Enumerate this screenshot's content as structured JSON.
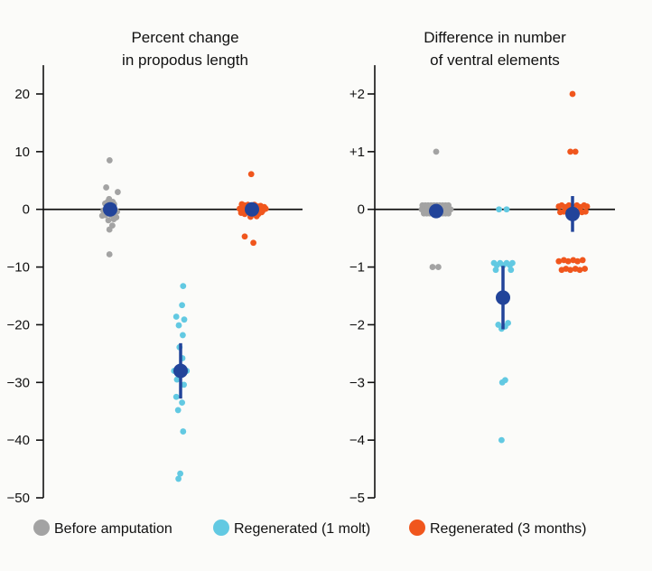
{
  "colors": {
    "before": "#a3a3a3",
    "molt1": "#62c9e2",
    "months3": "#f0561d",
    "mean": "#22449a",
    "axis": "#111111"
  },
  "legend": [
    {
      "label": "Before amputation",
      "color_key": "before"
    },
    {
      "label": "Regenerated (1 molt)",
      "color_key": "molt1"
    },
    {
      "label": "Regenerated (3 months)",
      "color_key": "months3"
    }
  ],
  "chart_data": [
    {
      "type": "scatter",
      "title": [
        "Percent change",
        "in propodus length"
      ],
      "ylim": [
        -50,
        25
      ],
      "yticks": [
        20,
        10,
        0,
        -10,
        -20,
        -30,
        -40,
        -50
      ],
      "ytick_labels": [
        "20",
        "10",
        "0",
        "−10",
        "−20",
        "−30",
        "−40",
        "−50"
      ],
      "groups": [
        {
          "name": "Before amputation",
          "color_key": "before",
          "mean": 0,
          "ci": [
            0,
            0
          ],
          "points": [
            {
              "dx": -0.08,
              "y": 8.5
            },
            {
              "dx": -0.55,
              "y": 3.8
            },
            {
              "dx": 1.05,
              "y": 3.0
            },
            {
              "dx": -0.15,
              "y": 1.8
            },
            {
              "dx": -0.35,
              "y": 1.3
            },
            {
              "dx": 0.35,
              "y": 1.3
            },
            {
              "dx": -0.7,
              "y": 1.0
            },
            {
              "dx": 0.55,
              "y": 0.9
            },
            {
              "dx": 0.3,
              "y": 0.4
            },
            {
              "dx": -0.5,
              "y": 0.3
            },
            {
              "dx": 0.0,
              "y": 0.0
            },
            {
              "dx": -0.95,
              "y": -0.2
            },
            {
              "dx": 0.7,
              "y": -0.2
            },
            {
              "dx": 0.95,
              "y": -0.4
            },
            {
              "dx": -0.35,
              "y": -0.6
            },
            {
              "dx": 0.4,
              "y": -0.9
            },
            {
              "dx": -0.65,
              "y": -1.0
            },
            {
              "dx": 0.15,
              "y": -1.0
            },
            {
              "dx": -1.1,
              "y": -1.1
            },
            {
              "dx": 0.85,
              "y": -1.4
            },
            {
              "dx": 0.5,
              "y": -1.7
            },
            {
              "dx": -0.25,
              "y": -1.9
            },
            {
              "dx": 0.3,
              "y": -2.8
            },
            {
              "dx": -0.1,
              "y": -3.5
            },
            {
              "dx": -0.1,
              "y": -7.8
            }
          ]
        },
        {
          "name": "Regenerated (1 molt)",
          "color_key": "molt1",
          "mean": -28,
          "ci": [
            -32.8,
            -23.2
          ],
          "points": [
            {
              "dx": 0.35,
              "y": -13.3
            },
            {
              "dx": 0.2,
              "y": -16.6
            },
            {
              "dx": -0.6,
              "y": -18.6
            },
            {
              "dx": 0.5,
              "y": -19.1
            },
            {
              "dx": -0.25,
              "y": -20.1
            },
            {
              "dx": 0.3,
              "y": -21.8
            },
            {
              "dx": -0.15,
              "y": -23.9
            },
            {
              "dx": 0.25,
              "y": -25.8
            },
            {
              "dx": -0.9,
              "y": -28.0
            },
            {
              "dx": 0.85,
              "y": -28.0
            },
            {
              "dx": -0.5,
              "y": -29.5
            },
            {
              "dx": 0.45,
              "y": -30.4
            },
            {
              "dx": -0.6,
              "y": -32.5
            },
            {
              "dx": 0.2,
              "y": -33.5
            },
            {
              "dx": -0.35,
              "y": -34.8
            },
            {
              "dx": 0.35,
              "y": -38.5
            },
            {
              "dx": -0.05,
              "y": -45.8
            },
            {
              "dx": -0.3,
              "y": -46.7
            }
          ]
        },
        {
          "name": "Regenerated (3 months)",
          "color_key": "months3",
          "mean": 0,
          "ci": [
            0,
            0
          ],
          "points": [
            {
              "dx": -0.1,
              "y": 6.1
            },
            {
              "dx": -1.4,
              "y": 0.9
            },
            {
              "dx": -1.05,
              "y": 0.7
            },
            {
              "dx": -0.55,
              "y": 0.8
            },
            {
              "dx": -0.1,
              "y": 0.6
            },
            {
              "dx": 0.35,
              "y": 0.8
            },
            {
              "dx": 0.8,
              "y": 0.5
            },
            {
              "dx": 1.2,
              "y": 0.6
            },
            {
              "dx": 1.7,
              "y": 0.4
            },
            {
              "dx": -1.7,
              "y": 0.1
            },
            {
              "dx": -1.25,
              "y": -0.1
            },
            {
              "dx": -0.8,
              "y": 0.2
            },
            {
              "dx": -0.35,
              "y": -0.2
            },
            {
              "dx": 0.1,
              "y": 0.3
            },
            {
              "dx": 0.55,
              "y": -0.1
            },
            {
              "dx": 1.0,
              "y": 0.2
            },
            {
              "dx": 1.45,
              "y": -0.3
            },
            {
              "dx": 1.9,
              "y": 0.1
            },
            {
              "dx": -1.5,
              "y": -0.6
            },
            {
              "dx": -1.0,
              "y": -0.8
            },
            {
              "dx": -0.55,
              "y": -0.5
            },
            {
              "dx": 0.0,
              "y": -0.9
            },
            {
              "dx": 0.45,
              "y": -0.6
            },
            {
              "dx": 0.9,
              "y": -0.8
            },
            {
              "dx": 1.35,
              "y": -0.5
            },
            {
              "dx": -0.2,
              "y": -1.3
            },
            {
              "dx": 0.65,
              "y": -1.2
            },
            {
              "dx": -1.0,
              "y": -4.7
            },
            {
              "dx": 0.2,
              "y": -5.8
            }
          ]
        }
      ]
    },
    {
      "type": "scatter",
      "title": [
        "Difference in number",
        "of ventral elements"
      ],
      "ylim": [
        -5,
        2.5
      ],
      "yticks": [
        2,
        1,
        0,
        -1,
        -2,
        -3,
        -4,
        -5
      ],
      "ytick_labels": [
        "+2",
        "+1",
        "0",
        "−1",
        "−2",
        "−3",
        "−4",
        "−5"
      ],
      "groups": [
        {
          "name": "Before amputation",
          "color_key": "before",
          "mean": -0.03,
          "ci": [
            -0.08,
            0.02
          ],
          "points": [
            {
              "dx": 0.0,
              "y": 1
            },
            {
              "dx": -1.9,
              "y": 0.07
            },
            {
              "dx": -1.5,
              "y": 0.07
            },
            {
              "dx": -1.1,
              "y": 0.07
            },
            {
              "dx": -0.7,
              "y": 0.07
            },
            {
              "dx": -0.3,
              "y": 0.07
            },
            {
              "dx": 0.1,
              "y": 0.07
            },
            {
              "dx": 0.5,
              "y": 0.07
            },
            {
              "dx": 0.9,
              "y": 0.07
            },
            {
              "dx": 1.3,
              "y": 0.07
            },
            {
              "dx": 1.7,
              "y": 0.07
            },
            {
              "dx": -2.0,
              "y": 0
            },
            {
              "dx": -1.6,
              "y": 0
            },
            {
              "dx": -1.2,
              "y": 0
            },
            {
              "dx": -0.8,
              "y": 0
            },
            {
              "dx": 0.8,
              "y": 0
            },
            {
              "dx": 1.2,
              "y": 0
            },
            {
              "dx": 1.6,
              "y": 0
            },
            {
              "dx": 2.0,
              "y": 0
            },
            {
              "dx": -1.7,
              "y": -0.07
            },
            {
              "dx": -1.3,
              "y": -0.07
            },
            {
              "dx": -0.9,
              "y": -0.07
            },
            {
              "dx": 0.9,
              "y": -0.07
            },
            {
              "dx": 1.3,
              "y": -0.07
            },
            {
              "dx": 1.7,
              "y": -0.07
            },
            {
              "dx": -0.5,
              "y": -1
            },
            {
              "dx": 0.3,
              "y": -1
            }
          ]
        },
        {
          "name": "Regenerated (1 molt)",
          "color_key": "molt1",
          "mean": -1.53,
          "ci": [
            -2.08,
            -0.98
          ],
          "points": [
            {
              "dx": -0.55,
              "y": 0
            },
            {
              "dx": 0.5,
              "y": 0
            },
            {
              "dx": -1.25,
              "y": -0.93
            },
            {
              "dx": -0.85,
              "y": -0.97
            },
            {
              "dx": -0.4,
              "y": -0.93
            },
            {
              "dx": 0.05,
              "y": -0.97
            },
            {
              "dx": 0.5,
              "y": -0.93
            },
            {
              "dx": 0.95,
              "y": -0.97
            },
            {
              "dx": 1.3,
              "y": -0.93
            },
            {
              "dx": -1.0,
              "y": -1.05
            },
            {
              "dx": 1.1,
              "y": -1.05
            },
            {
              "dx": 0.7,
              "y": -1.97
            },
            {
              "dx": -0.65,
              "y": -2.0
            },
            {
              "dx": 0.3,
              "y": -2.03
            },
            {
              "dx": -0.2,
              "y": -2.07
            },
            {
              "dx": -0.1,
              "y": -3.0
            },
            {
              "dx": 0.3,
              "y": -2.96
            },
            {
              "dx": -0.2,
              "y": -4.0
            }
          ]
        },
        {
          "name": "Regenerated (3 months)",
          "color_key": "months3",
          "mean": -0.08,
          "ci": [
            -0.39,
            0.23
          ],
          "points": [
            {
              "dx": 0.0,
              "y": 2
            },
            {
              "dx": -0.3,
              "y": 1
            },
            {
              "dx": 0.4,
              "y": 1
            },
            {
              "dx": -1.9,
              "y": 0.05
            },
            {
              "dx": -1.5,
              "y": 0.07
            },
            {
              "dx": -1.0,
              "y": 0.04
            },
            {
              "dx": -0.5,
              "y": 0.07
            },
            {
              "dx": 0.6,
              "y": 0.07
            },
            {
              "dx": 1.1,
              "y": 0.04
            },
            {
              "dx": 1.6,
              "y": 0.07
            },
            {
              "dx": 2.0,
              "y": 0.05
            },
            {
              "dx": -1.7,
              "y": -0.05
            },
            {
              "dx": -1.2,
              "y": -0.04
            },
            {
              "dx": 0.8,
              "y": -0.04
            },
            {
              "dx": 1.3,
              "y": -0.05
            },
            {
              "dx": 1.8,
              "y": -0.04
            },
            {
              "dx": -1.9,
              "y": -0.9
            },
            {
              "dx": -1.2,
              "y": -0.88
            },
            {
              "dx": -0.6,
              "y": -0.9
            },
            {
              "dx": 0.1,
              "y": -0.88
            },
            {
              "dx": 0.7,
              "y": -0.9
            },
            {
              "dx": 1.4,
              "y": -0.88
            },
            {
              "dx": -1.5,
              "y": -1.05
            },
            {
              "dx": -0.9,
              "y": -1.03
            },
            {
              "dx": -0.3,
              "y": -1.05
            },
            {
              "dx": 0.4,
              "y": -1.03
            },
            {
              "dx": 1.0,
              "y": -1.05
            },
            {
              "dx": 1.7,
              "y": -1.03
            }
          ]
        }
      ]
    }
  ]
}
